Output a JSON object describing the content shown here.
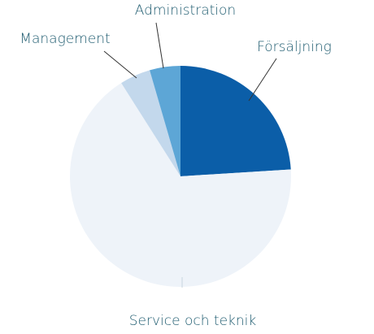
{
  "chart_data": {
    "type": "pie",
    "categories": [
      "Försäljning",
      "Service och teknik",
      "Management",
      "Administration"
    ],
    "values": [
      24,
      67,
      4.5,
      4.5
    ],
    "colors": [
      "#0b5ea8",
      "#eef3f9",
      "#c3d8ec",
      "#5da6d6"
    ]
  }
}
